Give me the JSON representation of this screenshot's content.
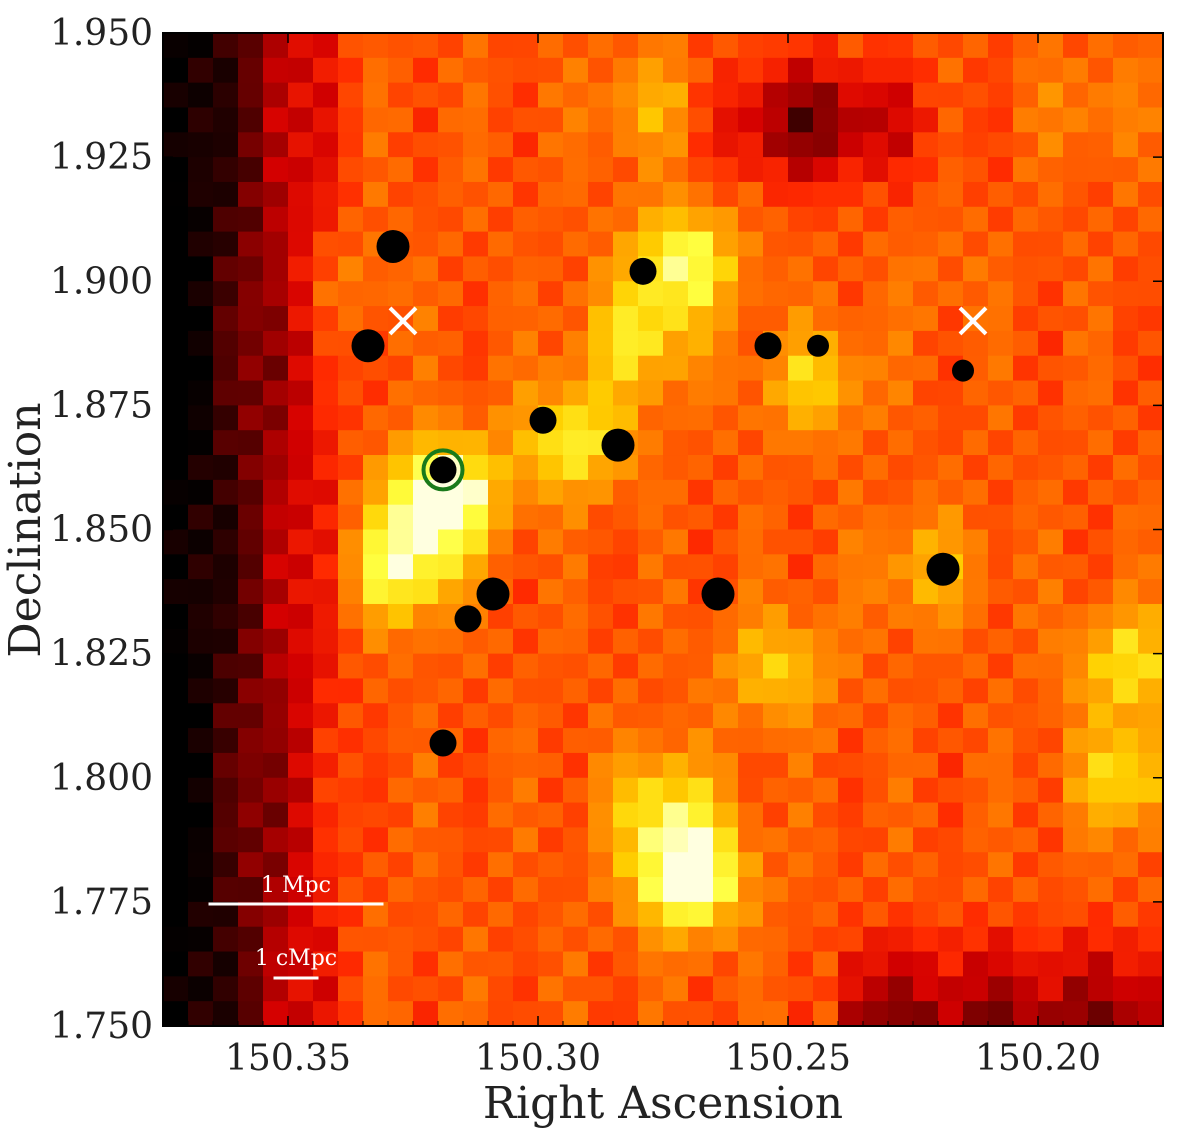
{
  "chart_data": {
    "type": "heatmap",
    "xlabel": "Right Ascension",
    "ylabel": "Declination",
    "xlim": [
      150.375,
      150.175
    ],
    "ylim": [
      1.75,
      1.95
    ],
    "xticks": [
      "150.35",
      "150.30",
      "150.25",
      "150.20"
    ],
    "xtick_values": [
      150.35,
      150.3,
      150.25,
      150.2
    ],
    "yticks": [
      "1.950",
      "1.925",
      "1.900",
      "1.875",
      "1.850",
      "1.825",
      "1.800",
      "1.775",
      "1.750"
    ],
    "ytick_values": [
      1.95,
      1.925,
      1.9,
      1.875,
      1.85,
      1.825,
      1.8,
      1.775,
      1.75
    ],
    "colormap": [
      "#000000",
      "#3a0000",
      "#8b0000",
      "#d40000",
      "#ff2a00",
      "#ff6a00",
      "#ff9a00",
      "#ffd000",
      "#ffff40",
      "#ffffe0"
    ],
    "grid": false,
    "legend": "none",
    "density_peaks": [
      {
        "ra": 150.319,
        "dec": 1.857,
        "level": 1.0
      },
      {
        "ra": 150.327,
        "dec": 1.842,
        "level": 0.85
      },
      {
        "ra": 150.293,
        "dec": 1.868,
        "level": 0.8
      },
      {
        "ra": 150.271,
        "dec": 1.904,
        "level": 0.85
      },
      {
        "ra": 150.28,
        "dec": 1.888,
        "level": 0.75
      },
      {
        "ra": 150.27,
        "dec": 1.78,
        "level": 1.0
      },
      {
        "ra": 150.275,
        "dec": 1.795,
        "level": 0.75
      },
      {
        "ra": 150.245,
        "dec": 1.88,
        "level": 0.7
      },
      {
        "ra": 150.252,
        "dec": 1.822,
        "level": 0.7
      },
      {
        "ra": 150.182,
        "dec": 1.823,
        "level": 0.75
      },
      {
        "ra": 150.182,
        "dec": 1.8,
        "level": 0.75
      },
      {
        "ra": 150.222,
        "dec": 1.842,
        "level": 0.65
      },
      {
        "ra": 150.277,
        "dec": 1.935,
        "level": 0.65
      },
      {
        "ra": 150.19,
        "dec": 1.935,
        "level": 0.55
      },
      {
        "ra": 150.22,
        "dec": 1.9,
        "level": 0.5
      },
      {
        "ra": 150.34,
        "dec": 1.9,
        "level": 0.55
      }
    ],
    "low_regions": [
      {
        "ra": 150.245,
        "dec": 1.932,
        "level": 0.2
      }
    ],
    "galaxies": [
      {
        "ra": 150.329,
        "dec": 1.907,
        "size": "large"
      },
      {
        "ra": 150.279,
        "dec": 1.902,
        "size": "medium"
      },
      {
        "ra": 150.334,
        "dec": 1.887,
        "size": "large"
      },
      {
        "ra": 150.254,
        "dec": 1.887,
        "size": "medium"
      },
      {
        "ra": 150.244,
        "dec": 1.887,
        "size": "small"
      },
      {
        "ra": 150.215,
        "dec": 1.882,
        "size": "small"
      },
      {
        "ra": 150.299,
        "dec": 1.872,
        "size": "medium"
      },
      {
        "ra": 150.284,
        "dec": 1.867,
        "size": "large"
      },
      {
        "ra": 150.319,
        "dec": 1.862,
        "size": "medium",
        "highlight": true
      },
      {
        "ra": 150.219,
        "dec": 1.842,
        "size": "large"
      },
      {
        "ra": 150.309,
        "dec": 1.837,
        "size": "large"
      },
      {
        "ra": 150.264,
        "dec": 1.837,
        "size": "large"
      },
      {
        "ra": 150.314,
        "dec": 1.832,
        "size": "medium"
      },
      {
        "ra": 150.319,
        "dec": 1.807,
        "size": "medium"
      }
    ],
    "crosses": [
      {
        "ra": 150.327,
        "dec": 1.892
      },
      {
        "ra": 150.213,
        "dec": 1.892
      }
    ],
    "colors": {
      "galaxy": "#000000",
      "highlight_ring": "#1a7a1a",
      "cross": "#ffffff",
      "scalebar": "#ffffff"
    },
    "scalebars": [
      {
        "label": "1 Mpc",
        "length_ra": 0.035
      },
      {
        "label": "1 cMpc",
        "length_ra": 0.009
      }
    ]
  }
}
